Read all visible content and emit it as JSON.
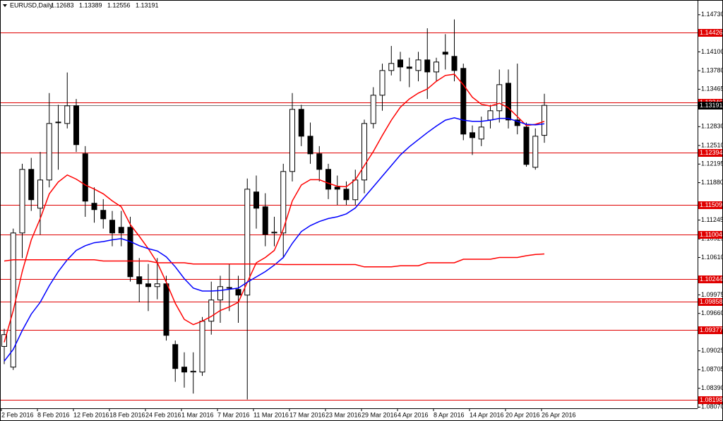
{
  "chart_data": {
    "type": "candlestick",
    "title": "EURUSD,Daily",
    "categories": [
      "2 Feb 2016",
      null,
      null,
      null,
      "8 Feb 2016",
      null,
      null,
      null,
      "12 Feb 2016",
      null,
      null,
      null,
      "18 Feb 2016",
      null,
      null,
      null,
      "24 Feb 2016",
      null,
      null,
      null,
      "1 Mar 2016",
      null,
      null,
      null,
      "7 Mar 2016",
      null,
      null,
      null,
      "11 Mar 2016",
      null,
      null,
      null,
      "17 Mar 2016",
      null,
      null,
      null,
      "23 Mar 2016",
      null,
      null,
      null,
      "29 Mar 2016",
      null,
      null,
      null,
      "4 Apr 2016",
      null,
      null,
      null,
      "8 Apr 2016",
      null,
      null,
      null,
      "14 Apr 2016",
      null,
      null,
      null,
      "20 Apr 2016",
      null,
      null,
      null,
      "26 Apr 2016"
    ],
    "open": [
      1.091,
      1.08749,
      1.11026,
      1.12105,
      1.11446,
      1.11925,
      1.12908,
      1.12884,
      1.13184,
      1.12369,
      1.1153,
      1.1141,
      1.11242,
      1.11122,
      1.11122,
      1.10283,
      1.10163,
      1.10115,
      1.10163,
      1.09132,
      1.08749,
      1.08665,
      1.08665,
      1.09528,
      1.09888,
      1.101,
      1.10067,
      1.09971,
      1.11722,
      1.1147,
      1.11026,
      1.11026,
      1.12069,
      1.13124,
      1.12668,
      1.12369,
      1.12105,
      1.11805,
      1.11769,
      1.1159,
      1.11925,
      1.12884,
      1.13364,
      1.13783,
      1.13963,
      1.13843,
      1.13783,
      1.13963,
      1.13759,
      1.14095,
      1.14023,
      1.13819,
      1.12728,
      1.1262,
      1.12944,
      1.131,
      1.13567,
      1.12944,
      1.12824,
      1.12141,
      1.12683
    ],
    "high": [
      1.094,
      1.111,
      1.122,
      1.123,
      1.124,
      1.134,
      1.132,
      1.1375,
      1.133,
      1.125,
      1.118,
      1.116,
      1.114,
      1.114,
      1.113,
      1.106,
      1.105,
      1.106,
      1.103,
      1.092,
      1.09,
      1.09,
      1.096,
      1.102,
      1.103,
      1.105,
      1.103,
      1.1195,
      1.12,
      1.117,
      1.113,
      1.122,
      1.134,
      1.132,
      1.129,
      1.125,
      1.122,
      1.12,
      1.119,
      1.121,
      1.1295,
      1.135,
      1.139,
      1.142,
      1.141,
      1.14,
      1.141,
      1.145,
      1.14,
      1.144,
      1.1465,
      1.139,
      1.1285,
      1.13,
      1.132,
      1.138,
      1.138,
      1.139,
      1.129,
      1.128,
      1.13389
    ],
    "low": [
      1.088,
      1.087,
      1.106,
      1.114,
      1.11,
      1.118,
      1.121,
      1.128,
      1.124,
      1.113,
      1.112,
      1.111,
      1.108,
      1.108,
      1.102,
      1.0985,
      1.097,
      1.099,
      1.092,
      1.085,
      1.084,
      1.083,
      1.086,
      1.093,
      1.095,
      1.097,
      1.095,
      1.082,
      1.111,
      1.108,
      1.108,
      1.106,
      1.119,
      1.125,
      1.122,
      1.119,
      1.116,
      1.115,
      1.115,
      1.115,
      1.117,
      1.128,
      1.131,
      1.137,
      1.136,
      1.135,
      1.136,
      1.133,
      1.136,
      1.138,
      1.136,
      1.126,
      1.1235,
      1.125,
      1.128,
      1.129,
      1.128,
      1.127,
      1.1215,
      1.121,
      1.12556
    ],
    "close": [
      1.093,
      1.11026,
      1.12105,
      1.1159,
      1.11925,
      1.12884,
      1.129,
      1.13184,
      1.12525,
      1.11566,
      1.11422,
      1.11266,
      1.11026,
      1.11026,
      1.10283,
      1.10163,
      1.10115,
      1.10163,
      1.09288,
      1.08725,
      1.08665,
      1.0868,
      1.09528,
      1.09888,
      1.10115,
      1.10091,
      1.09971,
      1.11769,
      1.11446,
      1.11002,
      1.1104,
      1.12069,
      1.13124,
      1.12668,
      1.12369,
      1.12105,
      1.11769,
      1.11769,
      1.1159,
      1.11925,
      1.12884,
      1.13364,
      1.13783,
      1.13903,
      1.13843,
      1.1382,
      1.13963,
      1.13759,
      1.13927,
      1.1406,
      1.13783,
      1.12704,
      1.12644,
      1.12824,
      1.131,
      1.13543,
      1.12944,
      1.12848,
      1.12189,
      1.12668,
      1.13191
    ],
    "up_color": "#ffffff",
    "down_color": "#000000",
    "overlays": [
      {
        "color": "#ff0000",
        "values": [
          1.0917,
          1.0971,
          1.1037,
          1.1091,
          1.1127,
          1.1169,
          1.1189,
          1.1201,
          1.1194,
          1.1184,
          1.1177,
          1.1169,
          1.1157,
          1.1147,
          1.1117,
          1.1097,
          1.1076,
          1.1052,
          1.1019,
          1.0983,
          1.0956,
          1.0947,
          1.0953,
          1.0961,
          1.0971,
          1.0977,
          1.0985,
          1.1019,
          1.1052,
          1.1061,
          1.1073,
          1.1109,
          1.1157,
          1.1184,
          1.1193,
          1.1193,
          1.1187,
          1.1182,
          1.1181,
          1.1193,
          1.1217,
          1.1241,
          1.1268,
          1.1294,
          1.1316,
          1.133,
          1.134,
          1.1347,
          1.136,
          1.137,
          1.1372,
          1.1354,
          1.1333,
          1.1321,
          1.1318,
          1.1323,
          1.1315,
          1.13,
          1.1285,
          1.1287,
          1.1292
        ]
      },
      {
        "color": "#0000ff",
        "values": [
          1.0885,
          1.0905,
          1.0937,
          1.0965,
          1.0985,
          1.1013,
          1.1037,
          1.1057,
          1.1073,
          1.1081,
          1.1086,
          1.1088,
          1.1091,
          1.1093,
          1.1088,
          1.1081,
          1.1076,
          1.1072,
          1.1062,
          1.1045,
          1.1025,
          1.1009,
          1.1004,
          1.1004,
          1.1005,
          1.1007,
          1.1009,
          1.1019,
          1.1028,
          1.1037,
          1.1048,
          1.1061,
          1.1085,
          1.1105,
          1.1115,
          1.1122,
          1.1127,
          1.113,
          1.1135,
          1.1145,
          1.1163,
          1.1181,
          1.1199,
          1.1217,
          1.1235,
          1.1249,
          1.1261,
          1.1273,
          1.1284,
          1.1294,
          1.1298,
          1.1294,
          1.1292,
          1.1292,
          1.1294,
          1.1297,
          1.1297,
          1.1292,
          1.1287,
          1.1286,
          1.1288
        ]
      },
      {
        "color": "#ff0000",
        "values": [
          1.1055,
          1.1057,
          1.1057,
          1.1057,
          1.1057,
          1.1057,
          1.1057,
          1.1057,
          1.1057,
          1.1057,
          1.1057,
          1.1055,
          1.1055,
          1.1055,
          1.1055,
          1.1055,
          1.1055,
          1.1052,
          1.1052,
          1.1052,
          1.1052,
          1.105,
          1.105,
          1.105,
          1.105,
          1.105,
          1.105,
          1.105,
          1.105,
          1.105,
          1.105,
          1.1049,
          1.1049,
          1.1049,
          1.1049,
          1.1049,
          1.1049,
          1.1049,
          1.1049,
          1.1049,
          1.1045,
          1.1045,
          1.1045,
          1.1045,
          1.1047,
          1.1047,
          1.1047,
          1.1052,
          1.1052,
          1.1052,
          1.1052,
          1.1058,
          1.1058,
          1.1058,
          1.1058,
          1.1061,
          1.1061,
          1.1061,
          1.1064,
          1.1066,
          1.1067
        ]
      }
    ],
    "levels": [
      1.14426,
      1.13246,
      1.12394,
      1.11509,
      1.11004,
      1.10244,
      1.09858,
      1.09377,
      1.08198
    ],
    "level_color": "#e00000",
    "ylim": [
      1.0805,
      1.1498
    ],
    "yticks": [
      {
        "value": 1.1473,
        "label": "1.14730"
      },
      {
        "value": 1.141,
        "label": "1.14100"
      },
      {
        "value": 1.1378,
        "label": "1.13780"
      },
      1.13465,
      {
        "value": 1.1283,
        "label": "1.12830"
      },
      {
        "value": 1.1251,
        "label": "1.12510"
      },
      1.12195,
      {
        "value": 1.1188,
        "label": "1.11880"
      },
      1.11245,
      1.10925,
      {
        "value": 1.1061,
        "label": "1.10610"
      },
      1.09975,
      {
        "value": 1.0966,
        "label": "1.09660"
      },
      1.09025,
      1.08705,
      {
        "value": 1.0839,
        "label": "1.08390"
      },
      {
        "value": 1.0807,
        "label": "1.08070"
      }
    ]
  }
}
